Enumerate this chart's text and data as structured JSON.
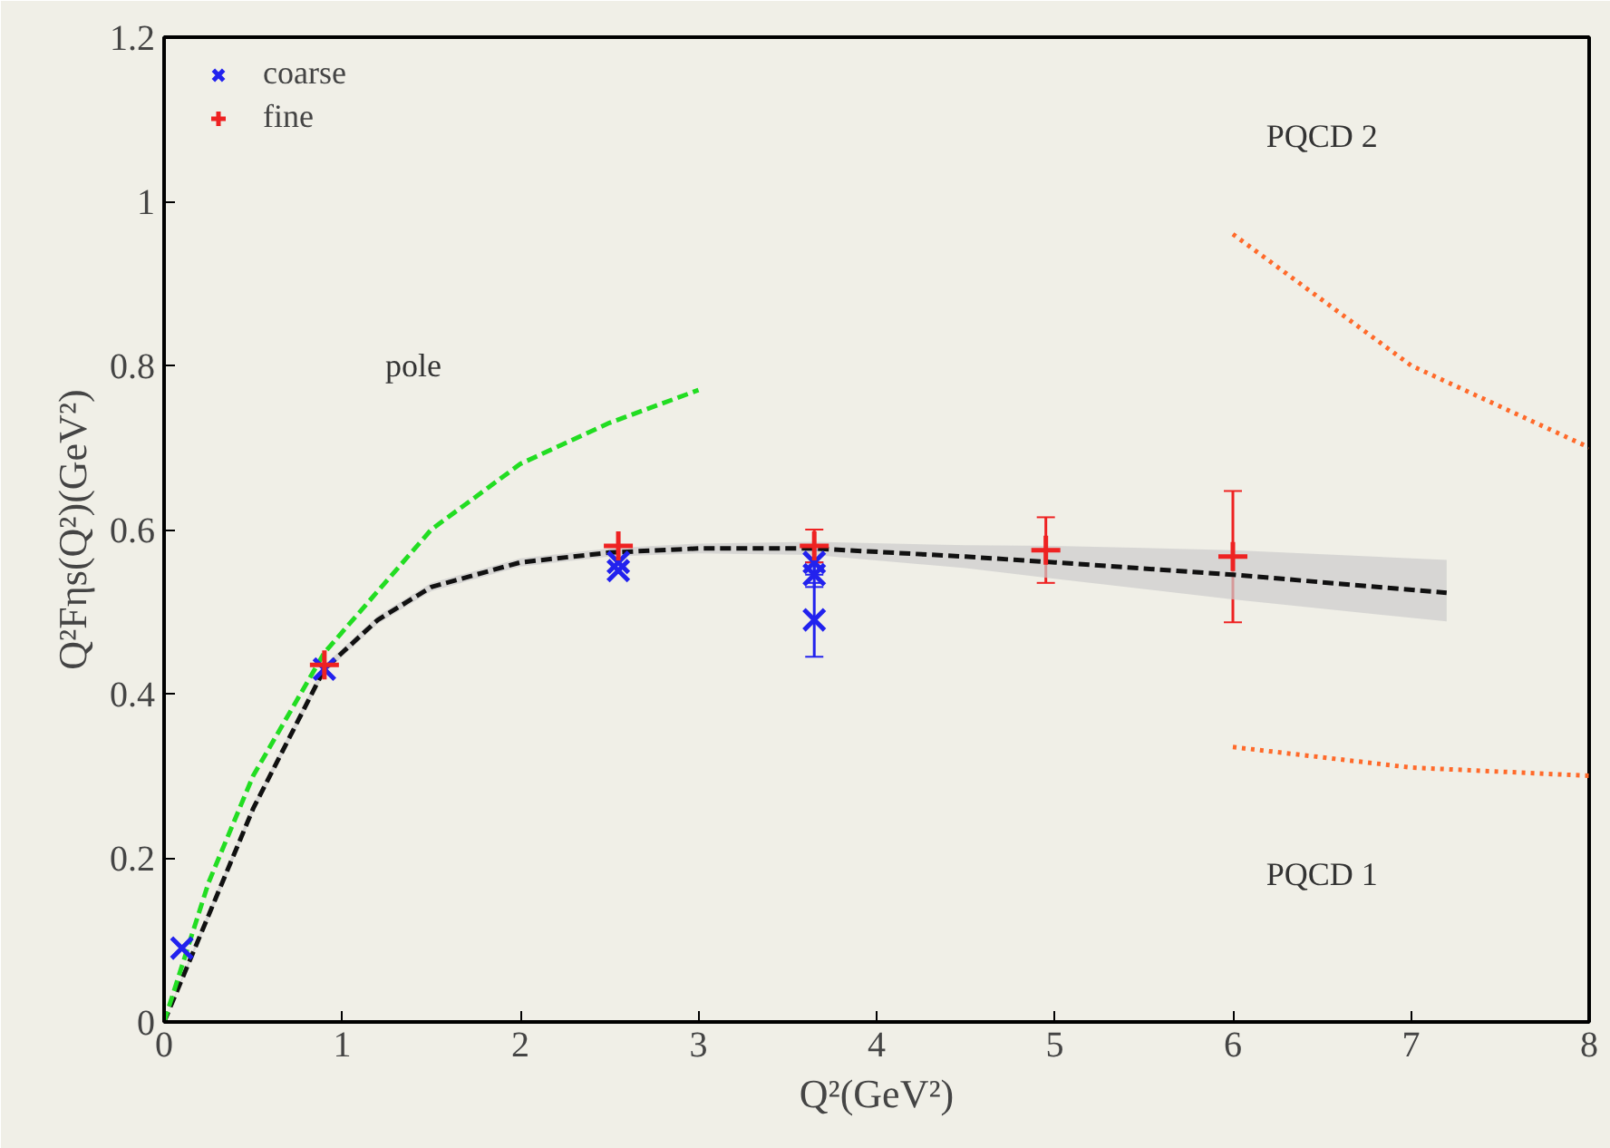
{
  "chart_data": {
    "type": "scatter",
    "xlabel": "Q²(GeV²)",
    "ylabel": "Q²Fηs(Q²)(GeV²)",
    "xlim": [
      0,
      8
    ],
    "ylim": [
      0,
      1.2
    ],
    "xticks": [
      0,
      1,
      2,
      3,
      4,
      5,
      6,
      7,
      8
    ],
    "yticks": [
      0,
      0.2,
      0.4,
      0.6,
      0.8,
      1,
      1.2
    ],
    "grid": false,
    "legend": "top left",
    "series": [
      {
        "type": "line",
        "color": "#111111",
        "line_style": "dashed",
        "x": [
          0,
          0.25,
          0.5,
          0.9,
          1.2,
          1.5,
          2,
          2.5,
          3,
          3.65,
          4.5,
          5,
          6,
          7.2
        ],
        "values": [
          0,
          0.13,
          0.26,
          0.43,
          0.49,
          0.53,
          0.56,
          0.572,
          0.577,
          0.577,
          0.567,
          0.56,
          0.545,
          0.523
        ],
        "lower": [
          0,
          0.125,
          0.255,
          0.425,
          0.485,
          0.525,
          0.555,
          0.567,
          0.571,
          0.569,
          0.553,
          0.54,
          0.515,
          0.488
        ],
        "upper": [
          0,
          0.135,
          0.265,
          0.435,
          0.495,
          0.535,
          0.565,
          0.577,
          0.583,
          0.585,
          0.581,
          0.58,
          0.575,
          0.563
        ]
      },
      {
        "type": "line",
        "color": "#22dd22",
        "line_style": "dashed",
        "x": [
          0,
          0.25,
          0.5,
          0.9,
          1.5,
          2,
          2.5,
          3
        ],
        "values": [
          0,
          0.17,
          0.3,
          0.45,
          0.6,
          0.68,
          0.73,
          0.77
        ]
      },
      {
        "type": "line",
        "color": "#ff6a2a",
        "line_style": "dotted",
        "x": [
          6,
          7,
          8
        ],
        "values": [
          0.96,
          0.8,
          0.7
        ]
      },
      {
        "type": "line",
        "color": "#ff6a2a",
        "line_style": "dotted",
        "x": [
          6,
          7,
          8
        ],
        "values": [
          0.335,
          0.31,
          0.3
        ]
      },
      {
        "name": "coarse",
        "color": "#2222ee",
        "marker": "x",
        "x": [
          0.1,
          0.9,
          2.55,
          2.55,
          3.65,
          3.65,
          3.65
        ],
        "values": [
          0.09,
          0.43,
          0.56,
          0.55,
          0.56,
          0.545,
          0.49
        ],
        "errors": [
          null,
          null,
          null,
          null,
          0.015,
          0.015,
          0.045
        ]
      },
      {
        "name": "fine",
        "color": "#ee2222",
        "marker": "cross",
        "x": [
          0.9,
          2.55,
          3.65,
          4.95,
          6
        ],
        "values": [
          0.435,
          0.58,
          0.58,
          0.575,
          0.567
        ],
        "errors": [
          null,
          null,
          0.02,
          0.04,
          0.08
        ]
      }
    ],
    "annotations": [
      "pole",
      "PQCD 2",
      "PQCD 1"
    ]
  }
}
